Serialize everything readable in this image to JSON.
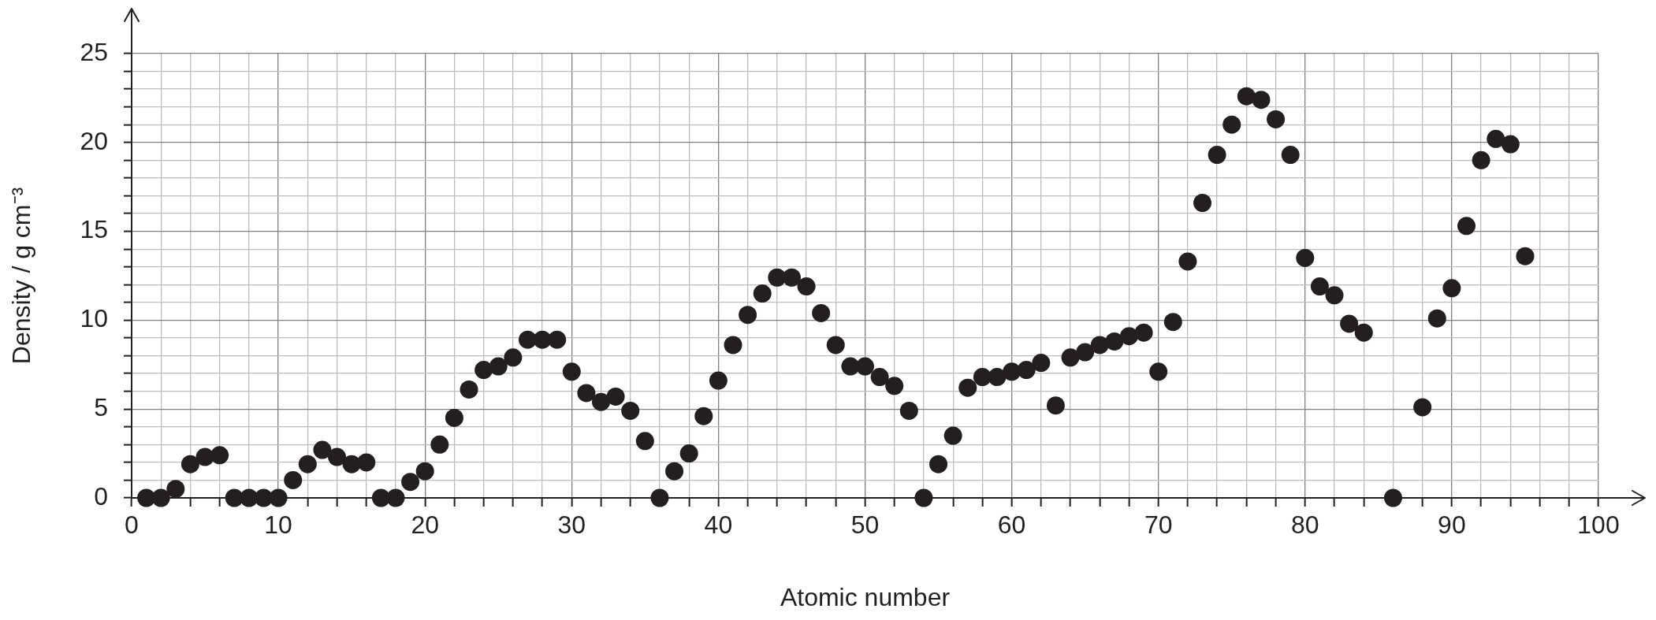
{
  "chart_data": {
    "type": "scatter",
    "xlabel": "Atomic number",
    "ylabel": "Density / g cm⁻³",
    "x": [
      1,
      2,
      3,
      4,
      5,
      6,
      7,
      8,
      9,
      10,
      11,
      12,
      13,
      14,
      15,
      16,
      17,
      18,
      19,
      20,
      21,
      22,
      23,
      24,
      25,
      26,
      27,
      28,
      29,
      30,
      31,
      32,
      33,
      34,
      35,
      36,
      37,
      38,
      39,
      40,
      41,
      42,
      43,
      44,
      45,
      46,
      47,
      48,
      49,
      50,
      51,
      52,
      53,
      54,
      55,
      56,
      57,
      58,
      59,
      60,
      61,
      62,
      63,
      64,
      65,
      66,
      67,
      68,
      69,
      70,
      71,
      72,
      73,
      74,
      75,
      76,
      77,
      78,
      79,
      80,
      81,
      82,
      83,
      84,
      86,
      88,
      89,
      90,
      91,
      92,
      93,
      94,
      95
    ],
    "values": [
      0,
      0,
      0.5,
      1.9,
      2.3,
      2.4,
      0,
      0,
      0,
      0,
      1.0,
      1.9,
      2.7,
      2.3,
      1.9,
      2.0,
      0,
      0,
      0.9,
      1.5,
      3.0,
      4.5,
      6.1,
      7.2,
      7.4,
      7.9,
      8.9,
      8.9,
      8.9,
      7.1,
      5.9,
      5.4,
      5.7,
      4.9,
      3.2,
      0,
      1.5,
      2.5,
      4.6,
      6.6,
      8.6,
      10.3,
      11.5,
      12.4,
      12.4,
      11.9,
      10.4,
      8.6,
      7.4,
      7.4,
      6.8,
      6.3,
      4.9,
      0,
      1.9,
      3.5,
      6.2,
      6.8,
      6.8,
      7.1,
      7.2,
      7.6,
      5.2,
      7.9,
      8.2,
      8.6,
      8.8,
      9.1,
      9.3,
      7.1,
      9.9,
      13.3,
      16.6,
      19.3,
      21.0,
      22.6,
      22.4,
      21.3,
      19.3,
      13.5,
      11.9,
      11.4,
      9.8,
      9.3,
      0,
      5.1,
      10.1,
      11.8,
      15.3,
      19.0,
      20.2,
      19.9,
      13.6
    ],
    "color": "#231f20",
    "xlim": [
      0,
      100
    ],
    "ylim": [
      0,
      25
    ],
    "xticks": [
      0,
      {
        "value": 2,
        "label": null
      },
      {
        "value": 4,
        "label": null
      },
      {
        "value": 6,
        "label": null
      },
      {
        "value": 8,
        "label": null
      },
      10,
      {
        "value": 12,
        "label": null
      },
      {
        "value": 14,
        "label": null
      },
      {
        "value": 16,
        "label": null
      },
      {
        "value": 18,
        "label": null
      },
      20,
      {
        "value": 22,
        "label": null
      },
      {
        "value": 24,
        "label": null
      },
      {
        "value": 26,
        "label": null
      },
      {
        "value": 28,
        "label": null
      },
      30,
      {
        "value": 32,
        "label": null
      },
      {
        "value": 34,
        "label": null
      },
      {
        "value": 36,
        "label": null
      },
      {
        "value": 38,
        "label": null
      },
      40,
      {
        "value": 42,
        "label": null
      },
      {
        "value": 44,
        "label": null
      },
      {
        "value": 46,
        "label": null
      },
      {
        "value": 48,
        "label": null
      },
      50,
      {
        "value": 52,
        "label": null
      },
      {
        "value": 54,
        "label": null
      },
      {
        "value": 56,
        "label": null
      },
      {
        "value": 58,
        "label": null
      },
      60,
      {
        "value": 62,
        "label": null
      },
      {
        "value": 64,
        "label": null
      },
      {
        "value": 66,
        "label": null
      },
      {
        "value": 68,
        "label": null
      },
      70,
      {
        "value": 72,
        "label": null
      },
      {
        "value": 74,
        "label": null
      },
      {
        "value": 76,
        "label": null
      },
      {
        "value": 78,
        "label": null
      },
      80,
      {
        "value": 82,
        "label": null
      },
      {
        "value": 84,
        "label": null
      },
      {
        "value": 86,
        "label": null
      },
      {
        "value": 88,
        "label": null
      },
      90,
      {
        "value": 92,
        "label": null
      },
      {
        "value": 94,
        "label": null
      },
      {
        "value": 96,
        "label": null
      },
      {
        "value": 98,
        "label": null
      },
      100
    ],
    "yticks": [
      0,
      {
        "value": 1,
        "label": null
      },
      {
        "value": 2,
        "label": null
      },
      {
        "value": 3,
        "label": null
      },
      {
        "value": 4,
        "label": null
      },
      5,
      {
        "value": 6,
        "label": null
      },
      {
        "value": 7,
        "label": null
      },
      {
        "value": 8,
        "label": null
      },
      {
        "value": 9,
        "label": null
      },
      10,
      {
        "value": 11,
        "label": null
      },
      {
        "value": 12,
        "label": null
      },
      {
        "value": 13,
        "label": null
      },
      {
        "value": 14,
        "label": null
      },
      15,
      {
        "value": 16,
        "label": null
      },
      {
        "value": 17,
        "label": null
      },
      {
        "value": 18,
        "label": null
      },
      {
        "value": 19,
        "label": null
      },
      20,
      {
        "value": 21,
        "label": null
      },
      {
        "value": 22,
        "label": null
      },
      {
        "value": 23,
        "label": null
      },
      {
        "value": 24,
        "label": null
      },
      25
    ],
    "grid": true,
    "marker": "circle"
  }
}
